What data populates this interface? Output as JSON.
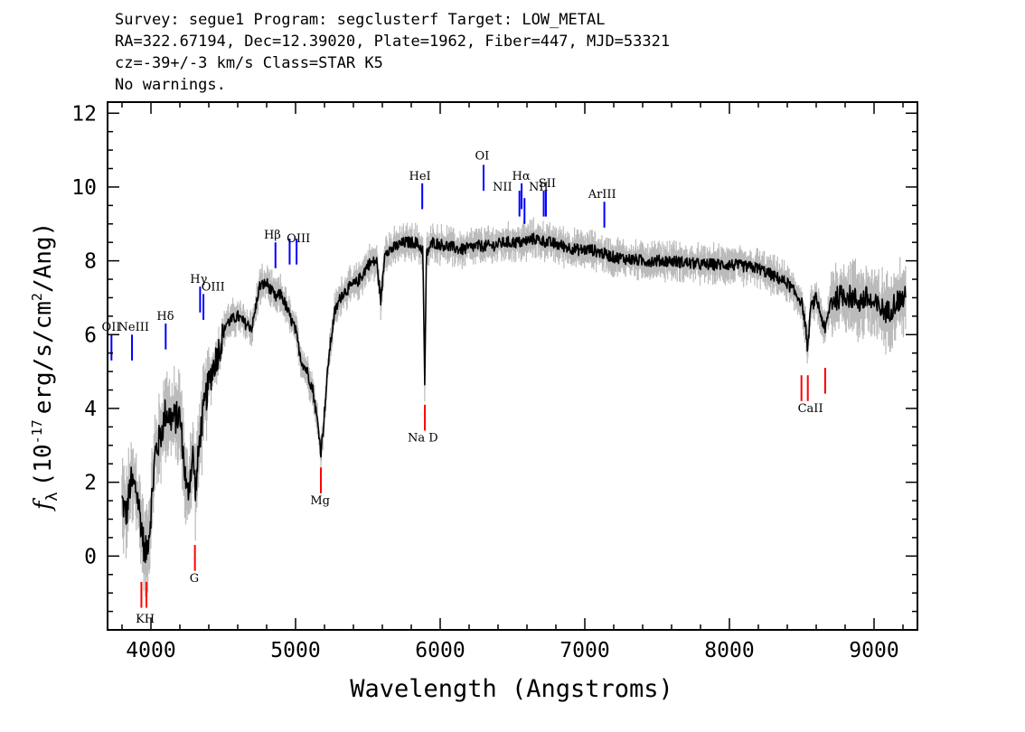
{
  "header": {
    "line1": "Survey: segue1 Program: segclusterf Target: LOW_METAL",
    "line2": "RA=322.67194, Dec=12.39020, Plate=1962, Fiber=447, MJD=53321",
    "line3": "cz=-39+/-3 km/s Class=STAR K5",
    "line4": "No warnings."
  },
  "colors": {
    "spectrum": "#000000",
    "error": "#bbbbbb",
    "emission": "#0000ff",
    "absorption": "#ff0000",
    "axes": "#000000"
  },
  "chart_data": {
    "type": "line",
    "xlabel": "Wavelength (Angstroms)",
    "ylabel": "f_λ (10^-17 erg/s/cm^2/Ang)",
    "ylabel_parts": {
      "f": "f",
      "sub": "λ",
      "pre": "(10",
      "exp": "-17",
      "mid": "erg/s/cm",
      "exp2": "2",
      "post": "/Ang)"
    },
    "xlim": [
      3700,
      9300
    ],
    "ylim": [
      -2,
      12.3
    ],
    "xticks": [
      4000,
      5000,
      6000,
      7000,
      8000,
      9000
    ],
    "xtick_labels": [
      "4000",
      "5000",
      "6000",
      "7000",
      "8000",
      "9000"
    ],
    "yticks": [
      0,
      2,
      4,
      6,
      8,
      10,
      12
    ],
    "ytick_labels": [
      "0",
      "2",
      "4",
      "6",
      "8",
      "10",
      "12"
    ],
    "series": [
      {
        "role": "flux",
        "x": [
          3800,
          3830,
          3860,
          3900,
          3935,
          3960,
          3990,
          4030,
          4070,
          4100,
          4150,
          4200,
          4250,
          4290,
          4310,
          4340,
          4380,
          4420,
          4470,
          4520,
          4560,
          4600,
          4650,
          4700,
          4750,
          4800,
          4860,
          4900,
          4950,
          5000,
          5040,
          5080,
          5120,
          5160,
          5175,
          5190,
          5230,
          5270,
          5320,
          5380,
          5420,
          5460,
          5500,
          5560,
          5590,
          5620,
          5660,
          5700,
          5760,
          5830,
          5880,
          5893,
          5905,
          5950,
          6050,
          6150,
          6250,
          6350,
          6450,
          6562,
          6650,
          6750,
          6850,
          6950,
          7050,
          7200,
          7400,
          7600,
          7800,
          8000,
          8200,
          8400,
          8498,
          8520,
          8542,
          8560,
          8600,
          8662,
          8700,
          8800,
          8900,
          8950,
          9000,
          9050,
          9100,
          9150,
          9220
        ],
        "y": [
          1.5,
          1.1,
          2.0,
          1.8,
          0.8,
          0.0,
          0.7,
          2.8,
          3.3,
          3.9,
          3.7,
          3.8,
          1.6,
          2.7,
          1.8,
          3.3,
          4.3,
          5.0,
          5.6,
          6.3,
          6.4,
          6.5,
          6.3,
          6.2,
          7.3,
          7.4,
          7.0,
          7.1,
          6.6,
          6.1,
          5.3,
          5.0,
          4.5,
          3.4,
          2.8,
          3.4,
          5.4,
          6.6,
          7.1,
          7.3,
          7.4,
          7.6,
          7.9,
          8.0,
          6.9,
          8.3,
          8.3,
          8.4,
          8.5,
          8.5,
          8.3,
          4.6,
          8.2,
          8.5,
          8.4,
          8.3,
          8.4,
          8.4,
          8.5,
          8.5,
          8.6,
          8.5,
          8.4,
          8.3,
          8.3,
          8.1,
          8.0,
          8.0,
          7.9,
          7.9,
          7.8,
          7.4,
          6.9,
          6.4,
          5.6,
          6.7,
          7.0,
          6.1,
          6.9,
          7.1,
          6.9,
          7.0,
          6.8,
          6.7,
          6.6,
          6.9,
          7.0
        ]
      }
    ],
    "emission_lines": [
      {
        "label": "OII",
        "x": 3727,
        "y0": 5.3,
        "y1": 6.0
      },
      {
        "label": "NeIII",
        "x": 3869,
        "y0": 5.3,
        "y1": 6.0
      },
      {
        "label": "Hδ",
        "x": 4102,
        "y0": 5.6,
        "y1": 6.3
      },
      {
        "label": "Hγ",
        "x": 4340,
        "y0": 6.6,
        "y1": 7.3
      },
      {
        "label": "OIII",
        "x": 4363,
        "y0": 6.4,
        "y1": 7.1
      },
      {
        "label": "Hβ",
        "x": 4861,
        "y0": 7.8,
        "y1": 8.5
      },
      {
        "label": "OIII",
        "x": 4959,
        "y0": 7.9,
        "y1": 8.6
      },
      {
        "label": "OIII",
        "x": 5007,
        "y0": 7.9,
        "y1": 8.6
      },
      {
        "label": "HeI",
        "x": 5876,
        "y0": 9.4,
        "y1": 10.1
      },
      {
        "label": "OI",
        "x": 6300,
        "y0": 9.9,
        "y1": 10.6
      },
      {
        "label": "NII",
        "x": 6548,
        "y0": 9.2,
        "y1": 9.9
      },
      {
        "label": "Hα",
        "x": 6563,
        "y0": 9.4,
        "y1": 10.1
      },
      {
        "label": "NII",
        "x": 6583,
        "y0": 9.0,
        "y1": 9.7
      },
      {
        "label": "SII",
        "x": 6716,
        "y0": 9.2,
        "y1": 9.9
      },
      {
        "label": "SII",
        "x": 6731,
        "y0": 9.2,
        "y1": 9.9
      },
      {
        "label": "ArIII",
        "x": 7135,
        "y0": 8.9,
        "y1": 9.6
      }
    ],
    "absorption_lines": [
      {
        "label": "K",
        "x": 3934,
        "y0": -1.4,
        "y1": -0.7
      },
      {
        "label": "H",
        "x": 3969,
        "y0": -1.4,
        "y1": -0.7
      },
      {
        "label": "G",
        "x": 4304,
        "y0": -0.4,
        "y1": 0.3
      },
      {
        "label": "Mg",
        "x": 5175,
        "y0": 1.7,
        "y1": 2.4
      },
      {
        "label": "Na D",
        "x": 5894,
        "y0": 3.4,
        "y1": 4.1
      },
      {
        "label": "CaII",
        "x": 8498,
        "y0": 4.2,
        "y1": 4.9
      },
      {
        "label": "CaII",
        "x": 8542,
        "y0": 4.2,
        "y1": 4.9
      },
      {
        "label": "CaII",
        "x": 8662,
        "y0": 4.4,
        "y1": 5.1
      }
    ],
    "line_labels": [
      {
        "text": "OII",
        "x": 3725,
        "y": 6.1
      },
      {
        "text": "NeIII",
        "x": 3880,
        "y": 6.1
      },
      {
        "text": "Hδ",
        "x": 4100,
        "y": 6.4
      },
      {
        "text": "Hγ",
        "x": 4330,
        "y": 7.4
      },
      {
        "text": "OIII",
        "x": 4430,
        "y": 7.2
      },
      {
        "text": "Hβ",
        "x": 4840,
        "y": 8.6
      },
      {
        "text": "OIII",
        "x": 5020,
        "y": 8.5
      },
      {
        "text": "HeI",
        "x": 5860,
        "y": 10.2
      },
      {
        "text": "OI",
        "x": 6290,
        "y": 10.75
      },
      {
        "text": "NII",
        "x": 6430,
        "y": 9.9
      },
      {
        "text": "Hα",
        "x": 6560,
        "y": 10.2
      },
      {
        "text": "NII",
        "x": 6680,
        "y": 9.9
      },
      {
        "text": "SII",
        "x": 6740,
        "y": 10.0
      },
      {
        "text": "ArIII",
        "x": 7120,
        "y": 9.7
      },
      {
        "text": "KH",
        "x": 3960,
        "y": -1.8
      },
      {
        "text": "G",
        "x": 4300,
        "y": -0.7
      },
      {
        "text": "Mg",
        "x": 5170,
        "y": 1.4
      },
      {
        "text": "Na D",
        "x": 5880,
        "y": 3.1
      },
      {
        "text": "CaII",
        "x": 8560,
        "y": 3.9
      }
    ]
  }
}
